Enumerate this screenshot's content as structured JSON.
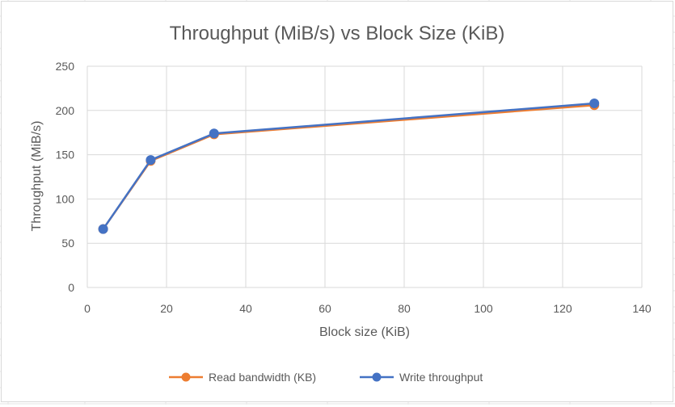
{
  "chart_data": {
    "type": "scatter",
    "title": "Throughput (MiB/s) vs Block Size (KiB)",
    "xlabel": "Block size (KiB)",
    "ylabel": "Throughput (MiB/s)",
    "xlim": [
      0,
      140
    ],
    "ylim": [
      0,
      250
    ],
    "xticks": [
      0,
      20,
      40,
      60,
      80,
      100,
      120,
      140
    ],
    "yticks": [
      0,
      50,
      100,
      150,
      200,
      250
    ],
    "grid": true,
    "legend_position": "bottom",
    "lines_connect_points": true,
    "series": [
      {
        "name": "Read bandwidth (KB)",
        "color": "#ED7D31",
        "x": [
          4,
          16,
          32,
          128
        ],
        "y": [
          66,
          143,
          173,
          206
        ]
      },
      {
        "name": "Write throughput",
        "color": "#4472C4",
        "x": [
          4,
          16,
          32,
          128
        ],
        "y": [
          66,
          144,
          174,
          208
        ]
      }
    ]
  }
}
